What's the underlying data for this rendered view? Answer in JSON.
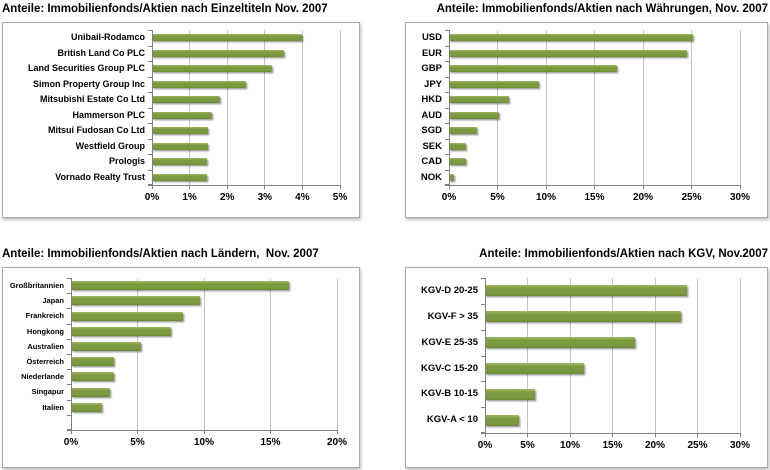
{
  "styles": {
    "page_bg": "#ffffff",
    "panel_bg": "#ffffff",
    "panel_border_color": "#a8a8a8",
    "bar_color": "#7b9a40",
    "bar_highlight": "#a2b763",
    "bar_shade": "#698735",
    "gridline_color": "#c4c4c4",
    "axis_color": "#808080",
    "text_color": "#000000"
  },
  "chart_data": [
    {
      "id": "einzeltitel",
      "type": "bar",
      "orientation": "horizontal",
      "title": "Anteile: Immobilienfonds/Aktien nach Einzeltiteln Nov. 2007",
      "unit": "%",
      "categories": [
        "Unibail-Rodamco",
        "British Land Co PLC",
        "Land Securities Group PLC",
        "Simon Property Group Inc",
        "Mitsubishi Estate Co Ltd",
        "Hammerson PLC",
        "Mitsui Fudosan Co Ltd",
        "Westfield Group",
        "Prologis",
        "Vornado Realty Trust"
      ],
      "values": [
        4.0,
        3.5,
        3.2,
        2.5,
        1.8,
        1.6,
        1.5,
        1.5,
        1.45,
        1.45
      ],
      "xlim": [
        0,
        5
      ],
      "xtick_values": [
        0,
        1,
        2,
        3,
        4,
        5
      ],
      "xtick_labels": [
        "0%",
        "1%",
        "2%",
        "3%",
        "4%",
        "5%"
      ],
      "grid": true,
      "legend": "none",
      "trailing_empty_rows": 0
    },
    {
      "id": "waehrungen",
      "type": "bar",
      "orientation": "horizontal",
      "title": "Anteile: Immobilienfonds/Aktien nach Währungen, Nov. 2007",
      "unit": "%",
      "categories": [
        "USD",
        "EUR",
        "GBP",
        "JPY",
        "HKD",
        "AUD",
        "SGD",
        "SEK",
        "CAD",
        "NOK"
      ],
      "values": [
        25.2,
        24.5,
        17.3,
        9.3,
        6.2,
        5.2,
        2.9,
        1.8,
        1.8,
        0.5
      ],
      "xlim": [
        0,
        30
      ],
      "xtick_values": [
        0,
        5,
        10,
        15,
        20,
        25,
        30
      ],
      "xtick_labels": [
        "0%",
        "5%",
        "10%",
        "15%",
        "20%",
        "25%",
        "30%"
      ],
      "grid": true,
      "legend": "none",
      "trailing_empty_rows": 0
    },
    {
      "id": "laender",
      "type": "bar",
      "orientation": "horizontal",
      "title": "Anteile: Immobilienfonds/Aktien nach Ländern,  Nov. 2007",
      "unit": "%",
      "categories": [
        "Großbritannien",
        "Japan",
        "Frankreich",
        "Hongkong",
        "Australien",
        "Österreich",
        "Niederlande",
        "Singapur",
        "Italien"
      ],
      "values": [
        16.4,
        9.7,
        8.4,
        7.5,
        5.3,
        3.2,
        3.2,
        2.9,
        2.3
      ],
      "xlim": [
        0,
        20
      ],
      "xtick_values": [
        0,
        5,
        10,
        15,
        20
      ],
      "xtick_labels": [
        "0%",
        "5%",
        "10%",
        "15%",
        "20%"
      ],
      "grid": true,
      "legend": "none",
      "trailing_empty_rows": 1
    },
    {
      "id": "kgv",
      "type": "bar",
      "orientation": "horizontal",
      "title": "Anteile: Immobilienfonds/Aktien nach KGV, Nov.2007",
      "unit": "%",
      "categories": [
        "KGV-D 20-25",
        "KGV-F > 35",
        "KGV-E 25-35",
        "KGV-C 15-20",
        "KGV-B 10-15",
        "KGV-A < 10"
      ],
      "values": [
        23.8,
        23.0,
        17.6,
        11.6,
        5.9,
        4.0
      ],
      "xlim": [
        0,
        30
      ],
      "xtick_values": [
        0,
        5,
        10,
        15,
        20,
        25,
        30
      ],
      "xtick_labels": [
        "0%",
        "5%",
        "10%",
        "15%",
        "20%",
        "25%",
        "30%"
      ],
      "grid": true,
      "legend": "none",
      "trailing_empty_rows": 0
    }
  ]
}
